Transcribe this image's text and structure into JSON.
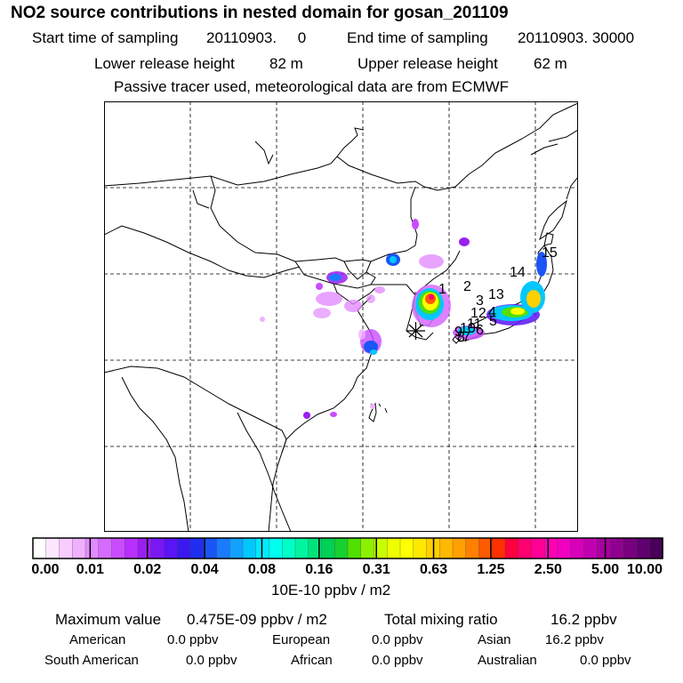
{
  "title": "NO2 source contributions in nested domain for gosan_201109",
  "sampling": {
    "start_label": "Start time of sampling",
    "start_value": "20110903.     0",
    "end_label": "End time of sampling",
    "end_value": "20110903. 30000"
  },
  "release": {
    "lower_label": "Lower release height",
    "lower_value": "82 m",
    "upper_label": "Upper release height",
    "upper_value": "62 m"
  },
  "note": "Passive tracer used, meteorological data are from ECMWF",
  "map": {
    "station_marker": "asterisk-icon",
    "receptor_labels": [
      "1",
      "2",
      "3",
      "13",
      "12",
      "4",
      "5",
      "11",
      "10",
      "6",
      "9",
      "8",
      "7",
      "14",
      "15"
    ]
  },
  "colorbar": {
    "tick_labels": [
      "0.00",
      "0.01",
      "0.02",
      "0.04",
      "0.08",
      "0.16",
      "0.31",
      "0.63",
      "1.25",
      "2.50",
      "5.00",
      "10.00"
    ],
    "colors": [
      "#ffffff",
      "#fde6ff",
      "#f8ccff",
      "#f0b0ff",
      "#e28cff",
      "#d66bff",
      "#c84cff",
      "#b82fff",
      "#9a1ff0",
      "#7a17f5",
      "#5a14f5",
      "#3b18f0",
      "#1f2ef0",
      "#1a55f5",
      "#1a7bff",
      "#14a0ff",
      "#00c8ff",
      "#00eaff",
      "#00ffee",
      "#00ffc8",
      "#00f5a0",
      "#00e37a",
      "#00d055",
      "#18d030",
      "#50e000",
      "#8cf000",
      "#c8ff00",
      "#eeff00",
      "#ffff00",
      "#ffe800",
      "#ffd000",
      "#ffb800",
      "#ffa000",
      "#ff8000",
      "#ff5a00",
      "#ff3000",
      "#ff0040",
      "#ff0070",
      "#ff0096",
      "#ff00b4",
      "#f000c0",
      "#d800b8",
      "#c000b0",
      "#a800a0",
      "#900090",
      "#780080",
      "#600070",
      "#480058"
    ],
    "unit": "10E-10 ppbv / m2"
  },
  "summary": {
    "max_label": "Maximum value",
    "max_value": "0.475E-09 ppbv / m2",
    "total_label": "Total mixing ratio",
    "total_value": "16.2 ppbv",
    "regions": [
      {
        "name": "American",
        "value": "0.0 ppbv"
      },
      {
        "name": "European",
        "value": "0.0 ppbv"
      },
      {
        "name": "Asian",
        "value": "16.2 ppbv"
      },
      {
        "name": "South American",
        "value": "0.0 ppbv"
      },
      {
        "name": "African",
        "value": "0.0 ppbv"
      },
      {
        "name": "Australian",
        "value": "0.0 ppbv"
      }
    ]
  }
}
